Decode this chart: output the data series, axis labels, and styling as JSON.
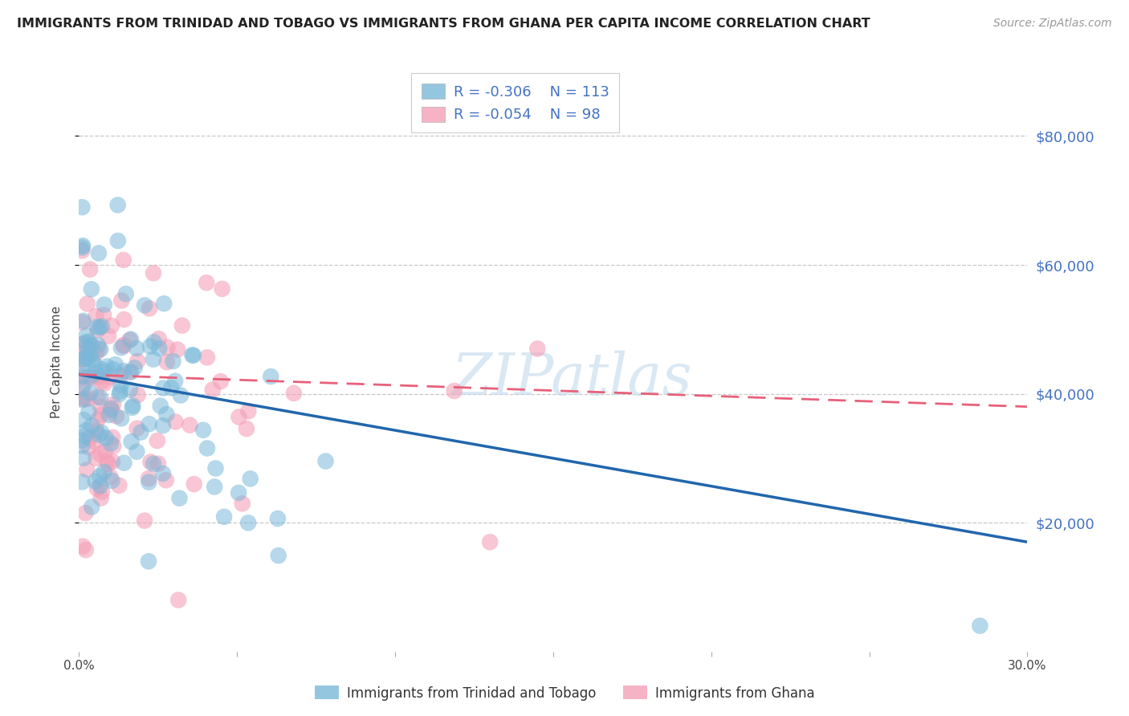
{
  "title": "IMMIGRANTS FROM TRINIDAD AND TOBAGO VS IMMIGRANTS FROM GHANA PER CAPITA INCOME CORRELATION CHART",
  "source": "Source: ZipAtlas.com",
  "ylabel": "Per Capita Income",
  "ytick_labels": [
    "$20,000",
    "$40,000",
    "$60,000",
    "$80,000"
  ],
  "ytick_values": [
    20000,
    40000,
    60000,
    80000
  ],
  "ylim": [
    0,
    90000
  ],
  "xlim": [
    0.0,
    0.3
  ],
  "blue_R": "-0.306",
  "blue_N": "113",
  "pink_R": "-0.054",
  "pink_N": "98",
  "blue_label": "Immigrants from Trinidad and Tobago",
  "pink_label": "Immigrants from Ghana",
  "blue_color": "#7ab8d9",
  "pink_color": "#f4a0b8",
  "blue_line_color": "#2166ac",
  "pink_line_color": "#e8607a",
  "watermark": "ZIPatlas",
  "background_color": "#ffffff",
  "grid_color": "#c8c8c8",
  "axis_label_color": "#4472c4",
  "title_color": "#222222",
  "source_color": "#999999"
}
